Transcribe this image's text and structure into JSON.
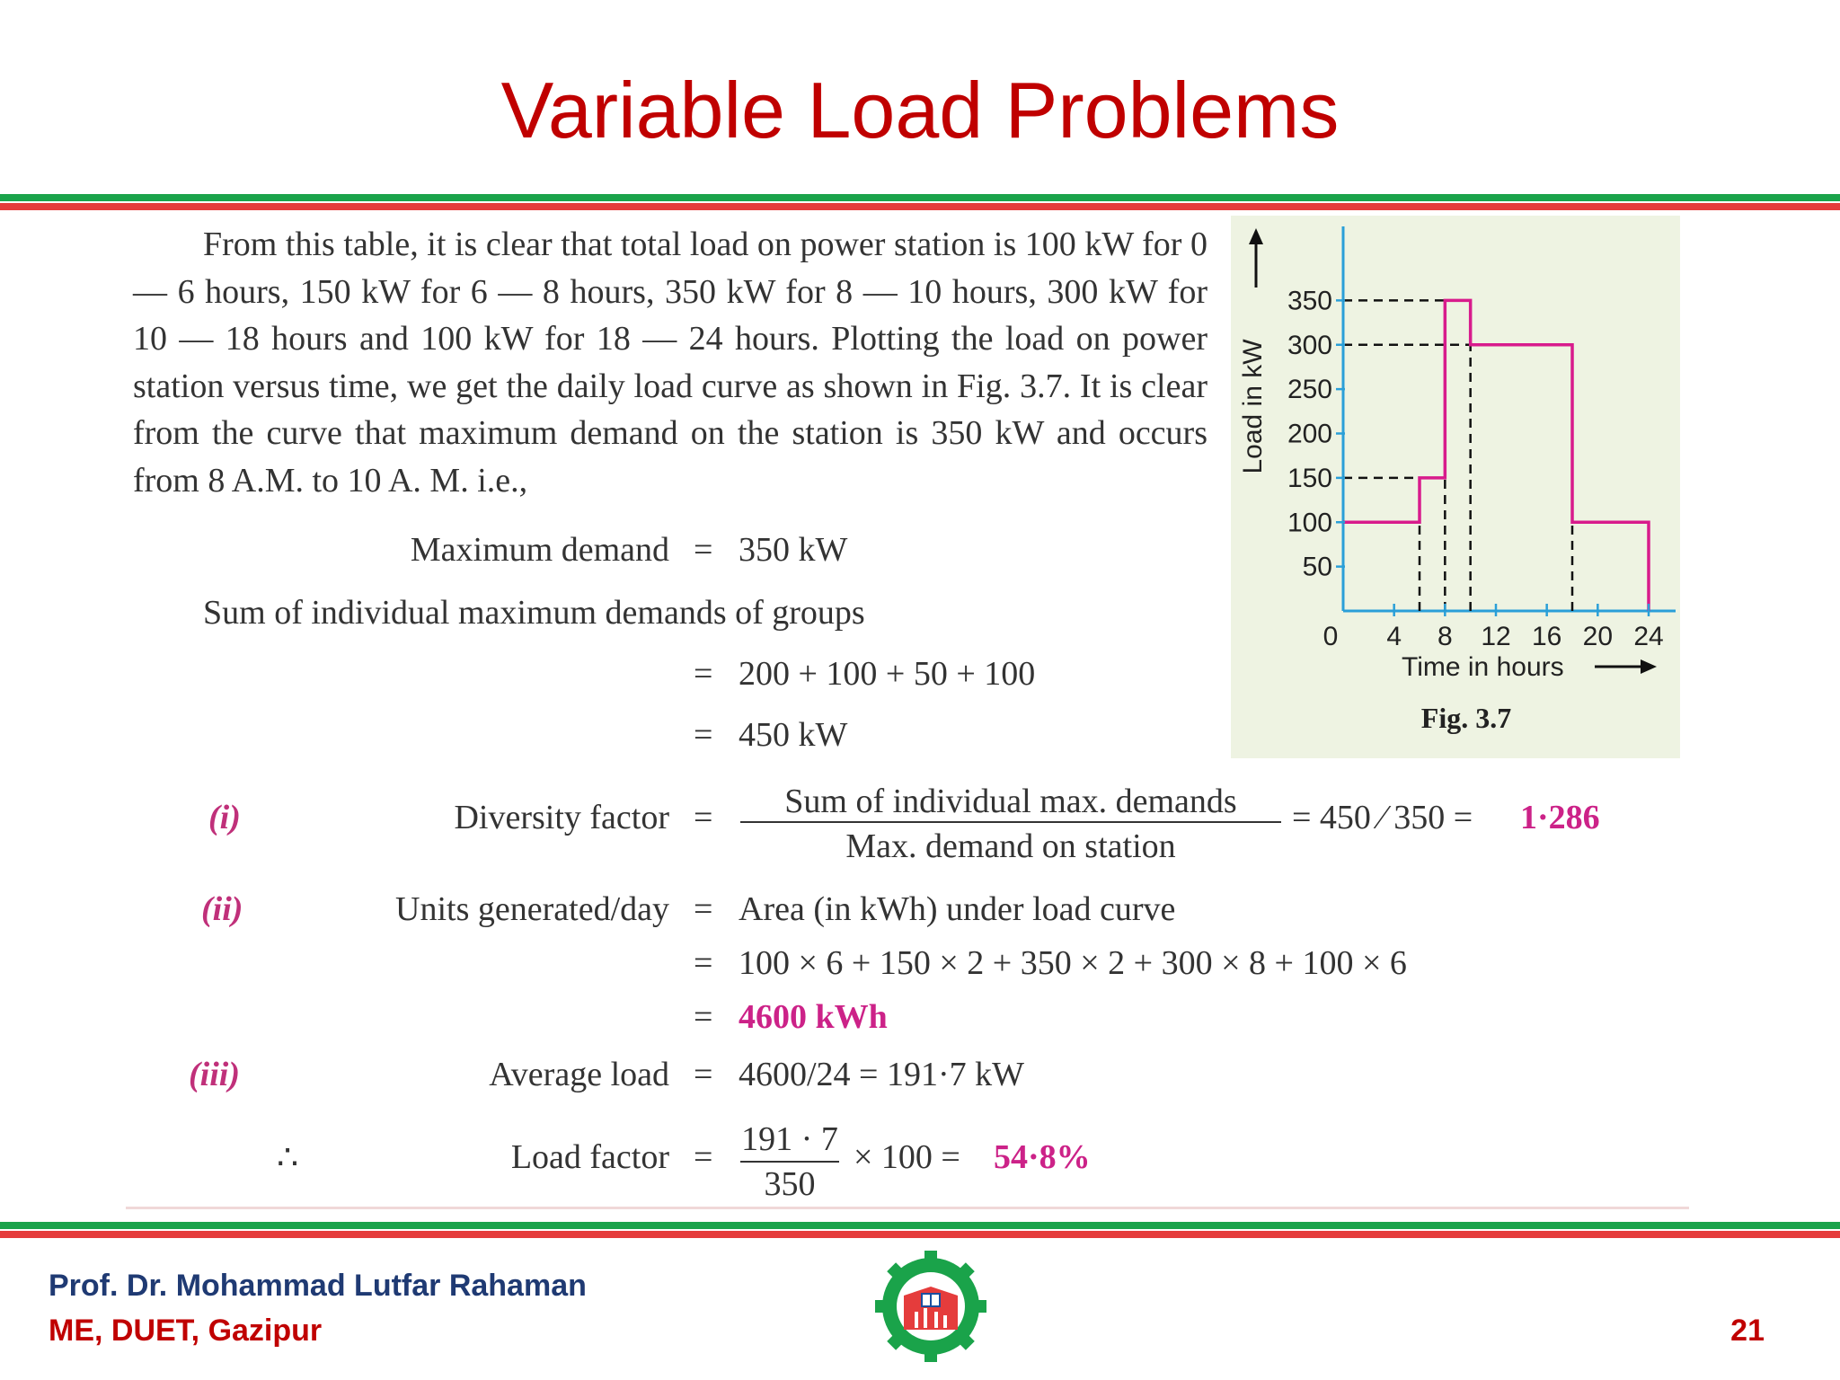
{
  "slide": {
    "title": "Variable Load Problems",
    "page_number": "21"
  },
  "footer": {
    "author": "Prof. Dr. Mohammad Lutfar Rahaman",
    "dept": "ME, DUET, Gazipur"
  },
  "colors": {
    "title": "#c00000",
    "green_bar": "#1aa34a",
    "red_bar": "#e53c3c",
    "highlight": "#cc2288",
    "axis": "#2a9fd8",
    "curve": "#d81b8c"
  },
  "text": {
    "paragraph": "From this table, it is clear that total load on power station is 100 kW for 0 — 6 hours, 150 kW for 6 — 8 hours, 350 kW for 8 — 10 hours, 300 kW for 10 — 18 hours and 100 kW for 18 — 24 hours. Plotting the load on power station versus time, we get the daily load curve as shown in Fig. 3.7. It is clear from the curve that maximum demand on the station is 350 kW and occurs from 8 A.M. to 10 A. M. i.e.,",
    "max_demand_label": "Maximum demand",
    "eq": "=",
    "max_demand_value": "350 kW",
    "sum_label": "Sum of individual maximum demands of groups",
    "sum_expr": "200 + 100 + 50 + 100",
    "sum_value": "450 kW",
    "item_i": "(i)",
    "diversity_label": "Diversity factor",
    "diversity_num": "Sum of individual max. demands",
    "diversity_den": "Max. demand on station",
    "diversity_calc": "= 450 ⁄ 350 =",
    "diversity_result": "1·286",
    "item_ii": "(ii)",
    "units_label": "Units generated/day",
    "units_line1": "Area (in kWh) under load curve",
    "units_line2": "100 × 6 + 150 × 2 + 350 × 2 + 300 × 8 + 100 × 6",
    "units_result": "4600 kWh",
    "item_iii": "(iii)",
    "avg_label": "Average load",
    "avg_value": "4600/24 = 191·7 kW",
    "therefore": "∴",
    "lf_label": "Load factor",
    "lf_num": "191 · 7",
    "lf_den": "350",
    "lf_mult": "× 100 =",
    "lf_result": "54·8%"
  },
  "chart_data": {
    "type": "line",
    "step": true,
    "caption": "Fig. 3.7",
    "xlabel": "Time in hours",
    "ylabel": "Load in kW",
    "x_ticks": [
      "0",
      "4",
      "8",
      "12",
      "16",
      "20",
      "24"
    ],
    "y_ticks": [
      "50",
      "100",
      "150",
      "200",
      "250",
      "300",
      "350"
    ],
    "xlim": [
      0,
      24
    ],
    "ylim": [
      0,
      350
    ],
    "segments": [
      {
        "x_start": 0,
        "x_end": 6,
        "value": 100
      },
      {
        "x_start": 6,
        "x_end": 8,
        "value": 150
      },
      {
        "x_start": 8,
        "x_end": 10,
        "value": 350
      },
      {
        "x_start": 10,
        "x_end": 18,
        "value": 300
      },
      {
        "x_start": 18,
        "x_end": 24,
        "value": 100
      }
    ],
    "dashed_guides": [
      {
        "x": 6,
        "y": 150
      },
      {
        "x": 8,
        "y": 350
      },
      {
        "x": 10,
        "y": 300
      },
      {
        "x": 18,
        "y": 300
      }
    ],
    "grid": false
  }
}
